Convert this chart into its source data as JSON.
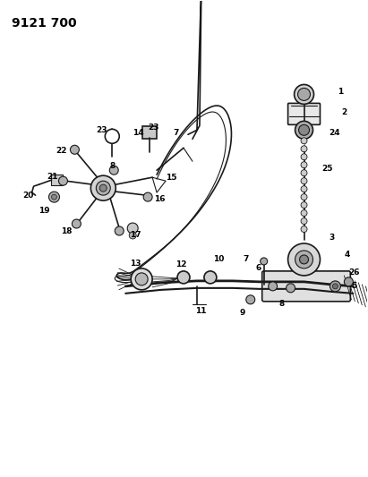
{
  "title": "9121 700",
  "background_color": "#ffffff",
  "figsize": [
    4.11,
    5.33
  ],
  "dpi": 100,
  "line_color": "#1a1a1a",
  "text_color": "#000000",
  "label_fontsize": 6.5,
  "title_fontsize": 10
}
